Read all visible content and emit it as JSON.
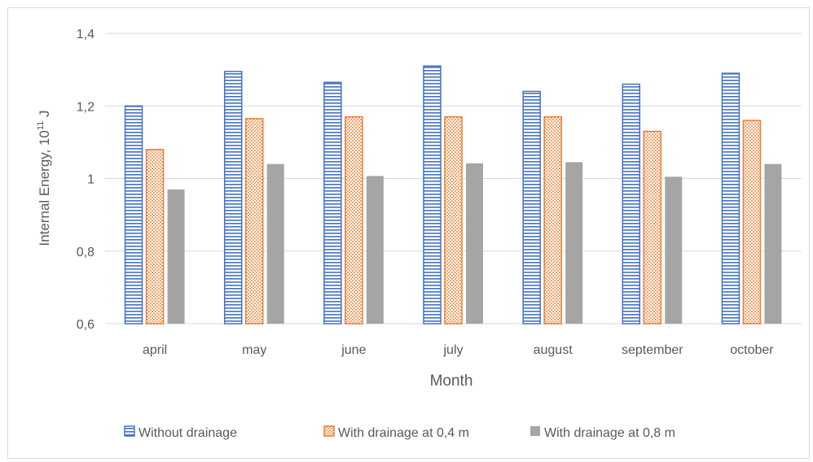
{
  "chart_data": {
    "type": "bar",
    "title": "",
    "xlabel": "Month",
    "ylabel_main": "Internal Energy, 10",
    "ylabel_sup": "11",
    "ylabel_unit": " J",
    "ylim": [
      0.6,
      1.4
    ],
    "yticks": [
      0.6,
      0.8,
      1.0,
      1.2,
      1.4
    ],
    "ytick_labels": [
      "0,6",
      "0,8",
      "1",
      "1,2",
      "1,4"
    ],
    "grid": true,
    "legend_position": "bottom",
    "categories": [
      "april",
      "may",
      "june",
      "july",
      "august",
      "september",
      "october"
    ],
    "series": [
      {
        "name": "Without drainage",
        "pattern": "horizontal-lines",
        "color": "#4472c4",
        "values": [
          1.2,
          1.295,
          1.265,
          1.31,
          1.24,
          1.26,
          1.29
        ]
      },
      {
        "name": "With drainage at 0,4 m",
        "pattern": "dots",
        "color": "#ed7d31",
        "values": [
          1.08,
          1.165,
          1.17,
          1.17,
          1.17,
          1.13,
          1.16
        ]
      },
      {
        "name": "With drainage at 0,8 m",
        "pattern": "solid",
        "color": "#a5a5a5",
        "values": [
          0.97,
          1.04,
          1.007,
          1.042,
          1.045,
          1.005,
          1.04
        ]
      }
    ]
  }
}
